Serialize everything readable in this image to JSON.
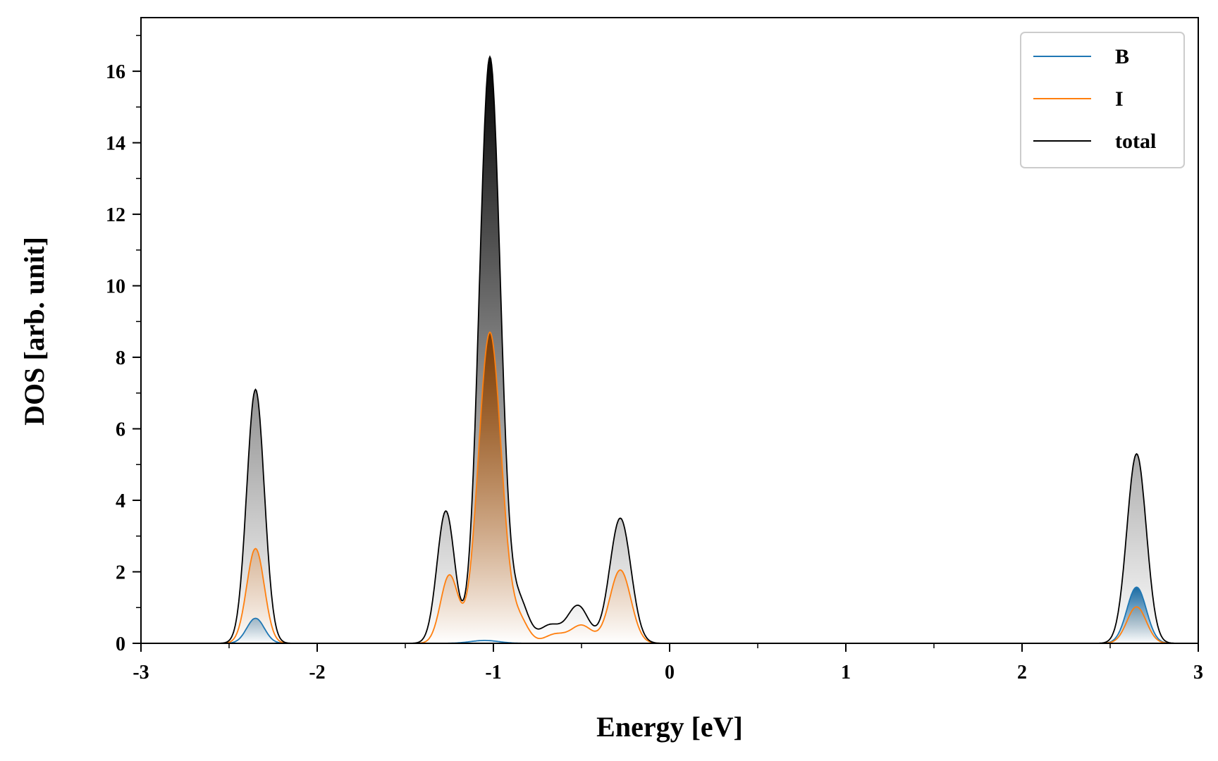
{
  "chart_data": {
    "type": "area",
    "xlabel": "Energy [eV]",
    "ylabel": "DOS [arb. unit]",
    "xlim": [
      -3,
      3
    ],
    "ylim": [
      0,
      17.5
    ],
    "x_ticks": [
      -3,
      -2,
      -1,
      0,
      1,
      2,
      3
    ],
    "x_tick_labels": [
      "-3",
      "-2",
      "-1",
      "0",
      "1",
      "2",
      "3"
    ],
    "y_ticks": [
      0,
      2,
      4,
      6,
      8,
      10,
      12,
      14,
      16
    ],
    "y_tick_labels": [
      "0",
      "2",
      "4",
      "6",
      "8",
      "10",
      "12",
      "14",
      "16"
    ],
    "grid": false,
    "legend_position": "top-right",
    "series": [
      {
        "name": "B",
        "color": "#1f77b4",
        "fill_gradient": true,
        "peaks": [
          {
            "center": -2.35,
            "width": 0.05,
            "height": 0.7
          },
          {
            "center": -1.05,
            "width": 0.08,
            "height": 0.08
          },
          {
            "center": 2.65,
            "width": 0.055,
            "height": 1.57
          }
        ]
      },
      {
        "name": "I",
        "color": "#ff7f0e",
        "fill_gradient": true,
        "peaks": [
          {
            "center": -2.35,
            "width": 0.05,
            "height": 2.65
          },
          {
            "center": -1.25,
            "width": 0.05,
            "height": 1.9
          },
          {
            "center": -1.02,
            "width": 0.065,
            "height": 8.7
          },
          {
            "center": -0.85,
            "width": 0.05,
            "height": 0.6
          },
          {
            "center": -0.65,
            "width": 0.06,
            "height": 0.25
          },
          {
            "center": -0.5,
            "width": 0.06,
            "height": 0.5
          },
          {
            "center": -0.28,
            "width": 0.06,
            "height": 2.05
          },
          {
            "center": 2.65,
            "width": 0.055,
            "height": 1.02
          }
        ]
      },
      {
        "name": "total",
        "color": "#000000",
        "fill_gradient": true,
        "peaks": [
          {
            "center": -2.35,
            "width": 0.05,
            "height": 7.1
          },
          {
            "center": -1.27,
            "width": 0.05,
            "height": 3.7
          },
          {
            "center": -1.02,
            "width": 0.06,
            "height": 16.4
          },
          {
            "center": -0.85,
            "width": 0.05,
            "height": 1.1
          },
          {
            "center": -0.68,
            "width": 0.06,
            "height": 0.5
          },
          {
            "center": -0.52,
            "width": 0.06,
            "height": 1.05
          },
          {
            "center": -0.28,
            "width": 0.06,
            "height": 3.5
          },
          {
            "center": 2.65,
            "width": 0.055,
            "height": 5.3
          }
        ]
      }
    ]
  }
}
